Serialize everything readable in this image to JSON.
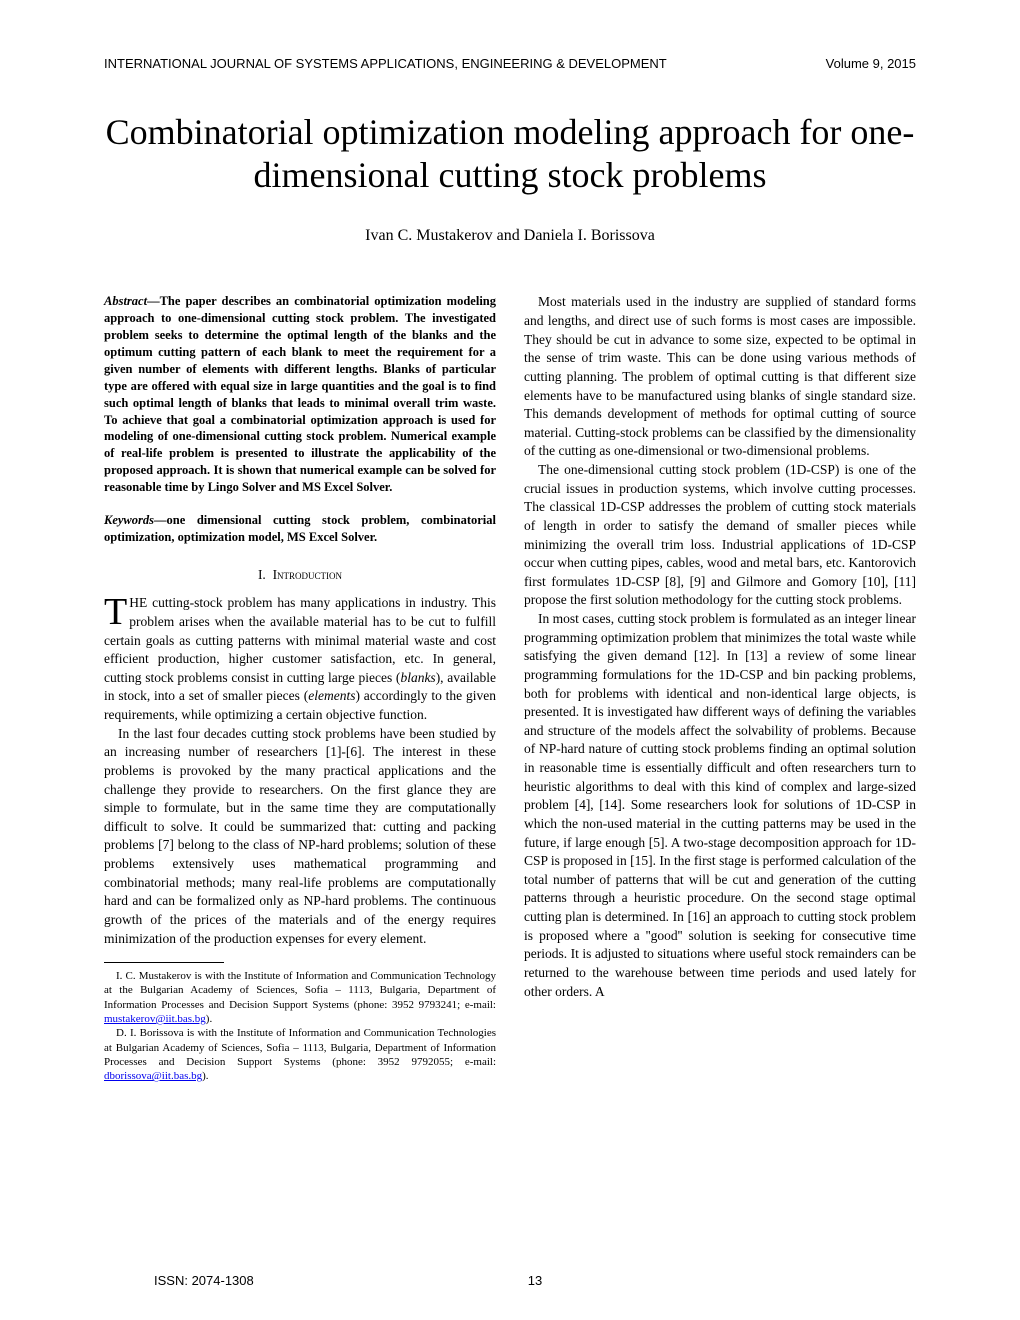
{
  "header": {
    "journal": "INTERNATIONAL JOURNAL OF SYSTEMS APPLICATIONS, ENGINEERING & DEVELOPMENT",
    "volume": "Volume 9, 2015"
  },
  "title": "Combinatorial optimization modeling approach for one-dimensional cutting stock problems",
  "authors": "Ivan C. Mustakerov and Daniela I. Borissova",
  "abstract": {
    "label": "Abstract",
    "text": "—The paper describes an combinatorial optimization modeling approach to one-dimensional cutting stock problem. The investigated problem seeks to determine the optimal length of the blanks and the optimum cutting pattern of each blank to meet the requirement for a given number of elements with different lengths. Blanks of particular type are offered with equal size in large quantities and the goal is to find such optimal length of blanks that leads to minimal overall trim waste. To achieve that goal a combinatorial optimization approach is used for modeling of one-dimensional cutting stock problem. Numerical example of real-life problem is presented to illustrate the applicability of the proposed approach. It is shown that numerical example can be solved for reasonable time by Lingo Solver and MS Excel Solver."
  },
  "keywords": {
    "label": "Keywords",
    "text": "—one dimensional cutting stock problem, combinatorial optimization, optimization model, MS Excel Solver."
  },
  "section1": {
    "number": "I.",
    "title": "Introduction"
  },
  "left": {
    "dropcap": "T",
    "p1_after_drop": "HE cutting-stock problem has many applications in industry. This problem arises when the available material has to be cut to fulfill certain goals as cutting patterns with minimal material waste and cost efficient production, higher customer satisfaction, etc. In general, cutting stock problems consist in cutting large pieces (",
    "p1_blanks": "blanks",
    "p1_mid": "), available in stock, into a set of smaller pieces (",
    "p1_elements": "elements",
    "p1_end": ") accordingly to the given requirements, while optimizing a certain objective function.",
    "p2": "In the last four decades cutting stock problems have been studied by an increasing number of researchers [1]-[6]. The interest in these problems is provoked by the many practical applications and the challenge they provide to researchers. On the first glance they are simple to formulate, but in the same time they are computationally difficult to solve. It could be summarized that: cutting and packing problems [7] belong to the class of NP-hard problems; solution of these problems extensively uses mathematical programming and combinatorial methods; many real-life problems are computationally hard and can be formalized only as NP-hard problems. The continuous growth of the prices of the materials and of the energy requires minimization of the production expenses for every element."
  },
  "footnotes": {
    "f1_text": "I. C. Mustakerov is with the Institute of Information and Communication Technology at the Bulgarian Academy of Sciences, Sofia – 1113, Bulgaria, Department of Information Processes and Decision Support Systems (phone: 3952 9793241; e-mail: ",
    "f1_mail": "mustakerov@iit.bas.bg",
    "f1_close": ").",
    "f2_text": "D. I. Borissova is with the Institute of Information and Communication Technologies at Bulgarian Academy of Sciences, Sofia – 1113, Bulgaria, Department of Information Processes and Decision Support Systems (phone: 3952 9792055; e-mail: ",
    "f2_mail": "dborissova@iit.bas.bg",
    "f2_close": ")."
  },
  "right": {
    "p1": "Most materials used in the industry are supplied of standard forms and lengths, and direct use of such forms is most cases are impossible. They should be cut in advance to some size, expected to be optimal in the sense of trim waste. This can be done using various methods of cutting planning. The problem of optimal cutting is that different size elements have to be manufactured using blanks of single standard size. This demands development of methods for optimal cutting of source material. Cutting-stock problems can be classified by the dimensionality of the cutting as one-dimensional or two-dimensional problems.",
    "p2": "The one-dimensional cutting stock problem (1D-CSP) is one of the crucial issues in production systems, which involve cutting processes. The classical 1D-CSP addresses the problem of cutting stock materials of length in order to satisfy the demand of smaller pieces while minimizing the overall trim loss. Industrial applications of 1D-CSP occur when cutting pipes, cables, wood and metal bars, etc. Kantorovich first formulates 1D-CSP [8], [9] and Gilmore and Gomory [10], [11] propose the first solution methodology for the cutting stock problems.",
    "p3": "In most cases, cutting stock problem is formulated as an integer linear programming optimization problem that minimizes the total waste while satisfying the given demand [12]. In [13] a review of some linear programming formulations for the 1D-CSP and bin packing problems, both for problems with identical and non-identical large objects, is presented. It is investigated haw different ways of defining the variables and structure of the models affect the solvability of problems. Because of NP-hard nature of cutting stock problems finding an optimal solution in reasonable time is essentially difficult and often researchers turn to heuristic algorithms to deal with this kind of complex and large-sized problem [4], [14]. Some researchers look for solutions of 1D-CSP in which the non-used material in the cutting patterns may be used in the future, if large enough [5]. A two-stage decomposition approach for 1D-CSP is proposed in [15]. In the first stage is performed calculation of the total number of patterns that will be cut and generation of the cutting patterns through a heuristic procedure. On the second stage optimal cutting plan is determined. In [16] an approach to cutting stock problem is proposed where a ''good'' solution is seeking for consecutive time periods. It is adjusted to situations where useful stock remainders can be returned to the warehouse between time periods and used lately for other orders. A"
  },
  "footer": {
    "issn": "ISSN: 2074-1308",
    "page": "13"
  },
  "colors": {
    "text": "#000000",
    "background": "#ffffff",
    "link": "#0000ee"
  },
  "typography": {
    "body_fontsize_pt": 10,
    "title_fontsize_pt": 24,
    "header_fontsize_pt": 9,
    "authors_fontsize_pt": 11,
    "footnote_fontsize_pt": 8
  }
}
